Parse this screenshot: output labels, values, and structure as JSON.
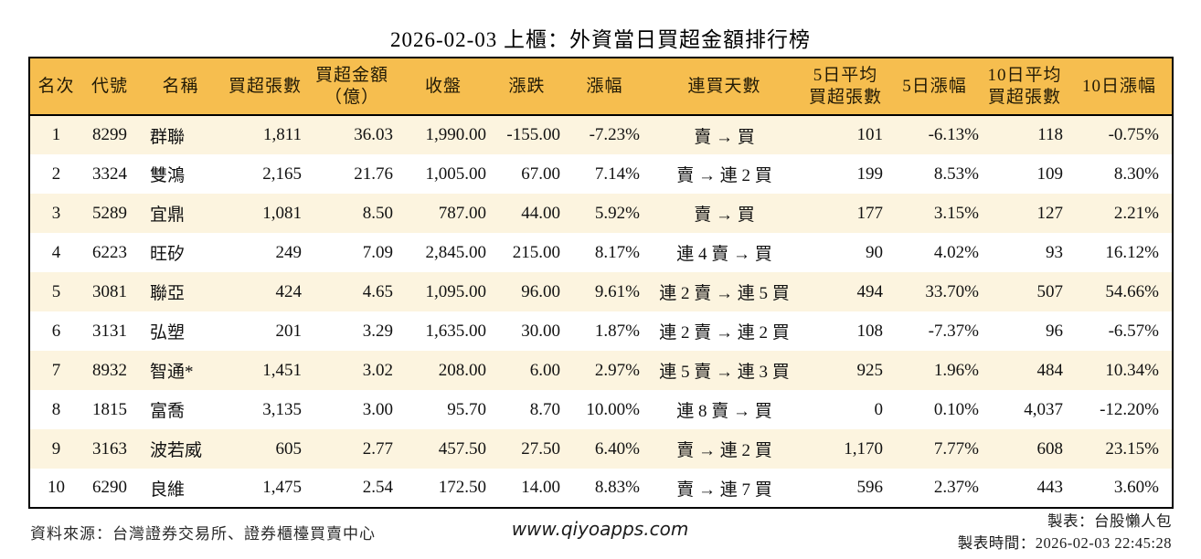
{
  "title": "2026-02-03 上櫃：外資當日買超金額排行榜",
  "colors": {
    "header_bg": "#F6BE4F",
    "stripe_bg": "#FCF4DF",
    "up_red": "#DD2222",
    "down_green": "#007F00",
    "border": "#000000"
  },
  "chart_data": {
    "type": "table",
    "title": "2026-02-03 上櫃：外資當日買超金額排行榜",
    "columns": [
      "名次",
      "代號",
      "名稱",
      "買超張數",
      "買超金額\n（億）",
      "收盤",
      "漲跌",
      "漲幅",
      "連買天數",
      "5日平均\n買超張數",
      "5日漲幅",
      "10日平均\n買超張數",
      "10日漲幅"
    ],
    "rows": [
      [
        "1",
        "8299",
        "群聯",
        "1,811",
        "36.03",
        "1,990.00",
        "-155.00",
        "-7.23%",
        "賣 → 買",
        "101",
        "-6.13%",
        "118",
        "-0.75%"
      ],
      [
        "2",
        "3324",
        "雙鴻",
        "2,165",
        "21.76",
        "1,005.00",
        "67.00",
        "7.14%",
        "賣 → 連 2 買",
        "199",
        "8.53%",
        "109",
        "8.30%"
      ],
      [
        "3",
        "5289",
        "宜鼎",
        "1,081",
        "8.50",
        "787.00",
        "44.00",
        "5.92%",
        "賣 → 買",
        "177",
        "3.15%",
        "127",
        "2.21%"
      ],
      [
        "4",
        "6223",
        "旺矽",
        "249",
        "7.09",
        "2,845.00",
        "215.00",
        "8.17%",
        "連 4 賣 → 買",
        "90",
        "4.02%",
        "93",
        "16.12%"
      ],
      [
        "5",
        "3081",
        "聯亞",
        "424",
        "4.65",
        "1,095.00",
        "96.00",
        "9.61%",
        "連 2 賣 → 連 5 買",
        "494",
        "33.70%",
        "507",
        "54.66%"
      ],
      [
        "6",
        "3131",
        "弘塑",
        "201",
        "3.29",
        "1,635.00",
        "30.00",
        "1.87%",
        "連 2 賣 → 連 2 買",
        "108",
        "-7.37%",
        "96",
        "-6.57%"
      ],
      [
        "7",
        "8932",
        "智通*",
        "1,451",
        "3.02",
        "208.00",
        "6.00",
        "2.97%",
        "連 5 賣 → 連 3 買",
        "925",
        "1.96%",
        "484",
        "10.34%"
      ],
      [
        "8",
        "1815",
        "富喬",
        "3,135",
        "3.00",
        "95.70",
        "8.70",
        "10.00%",
        "連 8 賣 → 買",
        "0",
        "0.10%",
        "4,037",
        "-12.20%"
      ],
      [
        "9",
        "3163",
        "波若威",
        "605",
        "2.77",
        "457.50",
        "27.50",
        "6.40%",
        "賣 → 連 2 買",
        "1,170",
        "7.77%",
        "608",
        "23.15%"
      ],
      [
        "10",
        "6290",
        "良維",
        "1,475",
        "2.54",
        "172.50",
        "14.00",
        "8.83%",
        "賣 → 連 7 買",
        "596",
        "2.37%",
        "443",
        "3.60%"
      ]
    ],
    "color_rule": "positive values red, negative values green (columns 漲跌/漲幅/5日漲幅/10日漲幅)",
    "legend_position": "none",
    "grid": false
  },
  "footer": {
    "source": "資料來源：台灣證券交易所、證券櫃檯買賣中心",
    "website": "www.qiyoapps.com",
    "author": "製表：台股懶人包",
    "generated_at": "製表時間：2026-02-03 22:45:28"
  }
}
